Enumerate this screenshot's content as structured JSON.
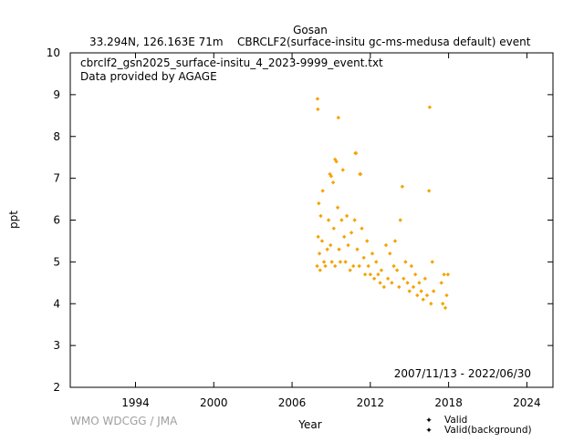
{
  "header": {
    "station": "Gosan",
    "location": "33.294N, 126.163E 71m",
    "series_title": "CBRCLF2(surface-insitu gc-ms-medusa default) event"
  },
  "annotations": {
    "filename": "cbrclf2_gsn2025_surface-insitu_4_2023-9999_event.txt",
    "provider": "Data provided by AGAGE",
    "date_range": "2007/11/13 - 2022/06/30",
    "credit": "WMO WDCGG / JMA"
  },
  "colors": {
    "valid": "#f5a300",
    "background": "#2e8b57"
  },
  "chart_data": {
    "type": "scatter",
    "xlabel": "Year",
    "ylabel": "ppt",
    "xlim": [
      1989,
      2026
    ],
    "ylim": [
      2,
      10
    ],
    "xticks": [
      "1994",
      "2000",
      "2006",
      "2012",
      "2018",
      "2024"
    ],
    "yticks": [
      "2",
      "3",
      "4",
      "5",
      "6",
      "7",
      "8",
      "9",
      "10"
    ],
    "grid": false,
    "legend_position": "bottom-right",
    "legend": [
      "Valid",
      "Valid(background)"
    ],
    "series": [
      {
        "name": "Valid",
        "color": "#f5a300",
        "points": [
          [
            2007.92,
            4.9
          ],
          [
            2008.0,
            5.6
          ],
          [
            2008.05,
            6.4
          ],
          [
            2008.1,
            5.2
          ],
          [
            2008.15,
            4.8
          ],
          [
            2008.2,
            6.1
          ],
          [
            2008.3,
            5.5
          ],
          [
            2008.35,
            6.7
          ],
          [
            2008.45,
            5.0
          ],
          [
            2008.55,
            4.9
          ],
          [
            2008.7,
            5.3
          ],
          [
            2008.8,
            6.0
          ],
          [
            2008.9,
            7.1
          ],
          [
            2008.95,
            5.4
          ],
          [
            2009.05,
            5.0
          ],
          [
            2009.15,
            6.9
          ],
          [
            2009.2,
            5.8
          ],
          [
            2009.3,
            4.9
          ],
          [
            2009.4,
            7.4
          ],
          [
            2009.5,
            6.3
          ],
          [
            2009.6,
            5.3
          ],
          [
            2009.7,
            5.0
          ],
          [
            2009.8,
            6.0
          ],
          [
            2009.9,
            7.2
          ],
          [
            2010.0,
            5.6
          ],
          [
            2010.1,
            5.0
          ],
          [
            2010.2,
            6.1
          ],
          [
            2010.3,
            5.4
          ],
          [
            2010.45,
            4.8
          ],
          [
            2010.55,
            5.7
          ],
          [
            2010.7,
            4.9
          ],
          [
            2010.8,
            6.0
          ],
          [
            2010.9,
            7.6
          ],
          [
            2011.0,
            5.3
          ],
          [
            2011.15,
            4.9
          ],
          [
            2011.25,
            7.1
          ],
          [
            2011.35,
            5.8
          ],
          [
            2011.5,
            5.1
          ],
          [
            2011.6,
            4.7
          ],
          [
            2011.75,
            5.5
          ],
          [
            2011.85,
            4.9
          ],
          [
            2012.0,
            4.7
          ],
          [
            2012.15,
            5.2
          ],
          [
            2012.3,
            4.6
          ],
          [
            2012.45,
            5.0
          ],
          [
            2012.6,
            4.7
          ],
          [
            2012.75,
            4.5
          ],
          [
            2012.85,
            4.8
          ],
          [
            2013.05,
            4.4
          ],
          [
            2013.2,
            5.4
          ],
          [
            2013.35,
            4.6
          ],
          [
            2013.5,
            5.2
          ],
          [
            2013.65,
            4.5
          ],
          [
            2013.8,
            4.9
          ],
          [
            2013.9,
            5.5
          ],
          [
            2014.05,
            4.8
          ],
          [
            2014.2,
            4.4
          ],
          [
            2014.3,
            6.0
          ],
          [
            2014.45,
            6.8
          ],
          [
            2014.55,
            4.6
          ],
          [
            2014.7,
            5.0
          ],
          [
            2014.85,
            4.5
          ],
          [
            2015.0,
            4.3
          ],
          [
            2015.15,
            4.9
          ],
          [
            2015.3,
            4.4
          ],
          [
            2015.45,
            4.7
          ],
          [
            2015.6,
            4.2
          ],
          [
            2015.75,
            4.5
          ],
          [
            2015.9,
            4.3
          ],
          [
            2016.05,
            4.1
          ],
          [
            2016.2,
            4.6
          ],
          [
            2016.35,
            4.2
          ],
          [
            2016.5,
            6.7
          ],
          [
            2016.65,
            4.0
          ],
          [
            2016.75,
            5.0
          ],
          [
            2016.85,
            4.3
          ],
          [
            2017.45,
            4.5
          ],
          [
            2017.55,
            4.0
          ],
          [
            2017.65,
            4.7
          ],
          [
            2017.75,
            3.9
          ],
          [
            2017.85,
            4.2
          ],
          [
            2017.95,
            4.7
          ],
          [
            2007.95,
            8.9
          ],
          [
            2007.98,
            8.65
          ],
          [
            2009.55,
            8.45
          ],
          [
            2016.55,
            8.7
          ],
          [
            2010.85,
            7.6
          ],
          [
            2009.0,
            7.05
          ],
          [
            2009.3,
            7.45
          ],
          [
            2011.2,
            7.1
          ]
        ]
      },
      {
        "name": "Valid(background)",
        "color": "#2e8b57",
        "points": []
      }
    ]
  }
}
